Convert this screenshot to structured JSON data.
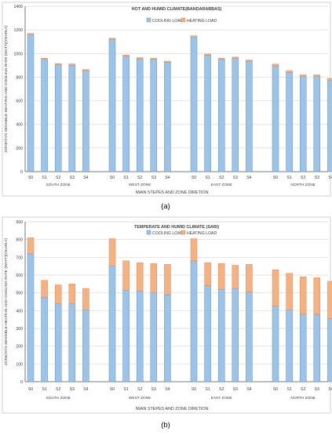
{
  "colors": {
    "cooling": "#9dc3e6",
    "cooling_stroke": "#5b8fc2",
    "heating": "#f4b183",
    "heating_stroke": "#d9895a",
    "grid": "#d9d9d9",
    "axis": "#595959",
    "text": "#404040",
    "frame": "#c8c8c8"
  },
  "chart_data": [
    {
      "type": "bar",
      "stacked": true,
      "panel_label": "(a)",
      "title": "HOT AND HUMID CLIMATE(BANDARABBAS)",
      "ylabel": "ZONE/SYS SENSIBLE HEATING AND COOLING RATE (WATT)(YEARLY)",
      "xlabel": "IWAN STEPES AND ZONE DIRETION",
      "ylim": [
        0,
        1400
      ],
      "yticks": [
        "0",
        "200",
        "400",
        "600",
        "800",
        "1000",
        "1200",
        "1400"
      ],
      "categories": [
        "S0",
        "S1",
        "S2",
        "S3",
        "S4",
        "S0",
        "S1",
        "S2",
        "S3",
        "S4",
        "S0",
        "S1",
        "S2",
        "S3",
        "S4",
        "S0",
        "S1",
        "S2",
        "S3",
        "S4"
      ],
      "groups": [
        "SOUTH ZONE",
        "WEST ZONE",
        "EAST ZONE",
        "NORTH ZONE"
      ],
      "legend": [
        "COOLING LOAD",
        "HEATING LOAD"
      ],
      "grid": true,
      "legend_position": "top",
      "series": [
        {
          "name": "COOLING LOAD",
          "values": [
            1160,
            950,
            905,
            900,
            855,
            1120,
            975,
            955,
            950,
            925,
            1140,
            985,
            950,
            960,
            935,
            895,
            840,
            805,
            805,
            775
          ]
        },
        {
          "name": "HEATING LOAD",
          "values": [
            10,
            10,
            10,
            12,
            10,
            10,
            12,
            10,
            10,
            10,
            10,
            10,
            10,
            10,
            10,
            15,
            15,
            15,
            15,
            15
          ]
        }
      ]
    },
    {
      "type": "bar",
      "stacked": true,
      "panel_label": "(b)",
      "title": "TEMPERATE AND HUMID CLIMATE (SARI)",
      "ylabel": "ZONE/SYS SENSIBLE HEATING AND COOLING RATE (WATT)(YEARLY)",
      "xlabel": "IWAN STEPES AND ZONE DIRETION",
      "ylim": [
        0,
        900
      ],
      "yticks": [
        "0",
        "100",
        "200",
        "300",
        "400",
        "500",
        "600",
        "700",
        "800",
        "900"
      ],
      "categories": [
        "S0",
        "S1",
        "S2",
        "S3",
        "S4",
        "S0",
        "S1",
        "S2",
        "S3",
        "S4",
        "S0",
        "S1",
        "S2",
        "S3",
        "S4",
        "S0",
        "S1",
        "S2",
        "S3",
        "S4"
      ],
      "groups": [
        "SOUTH ZONE",
        "WEST ZONE",
        "EAST ZONE",
        "NORTH ZONE"
      ],
      "legend": [
        "COOLING LOAD",
        "HEATING LOAD"
      ],
      "grid": true,
      "legend_position": "top",
      "series": [
        {
          "name": "COOLING LOAD",
          "values": [
            720,
            475,
            440,
            440,
            405,
            650,
            515,
            510,
            500,
            490,
            680,
            540,
            520,
            525,
            505,
            425,
            405,
            380,
            380,
            355
          ]
        },
        {
          "name": "HEATING LOAD",
          "values": [
            90,
            95,
            105,
            110,
            120,
            155,
            165,
            160,
            165,
            170,
            125,
            130,
            145,
            130,
            155,
            205,
            205,
            210,
            205,
            210
          ]
        }
      ]
    }
  ]
}
